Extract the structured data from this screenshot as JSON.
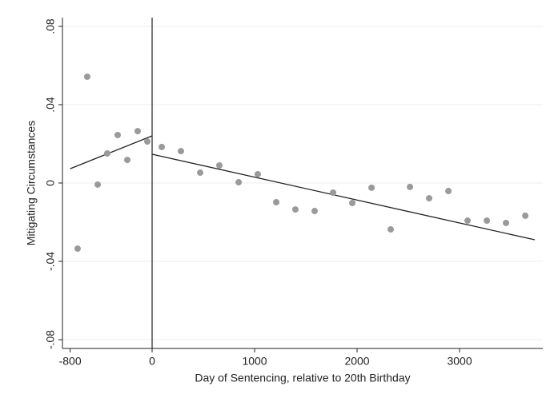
{
  "chart_data": {
    "type": "scatter",
    "xlabel": "Day of Sentencing, relative to 20th Birthday",
    "ylabel": "Mitigating Circumstances",
    "x": [
      -727,
      -633,
      -531,
      -438,
      -336,
      -242,
      -141,
      -47,
      94,
      281,
      469,
      656,
      844,
      1031,
      1211,
      1398,
      1586,
      1766,
      1953,
      2141,
      2328,
      2516,
      2703,
      2891,
      3078,
      3266,
      3453,
      3641
    ],
    "values": [
      -0.0335,
      0.0543,
      -0.0008,
      0.0151,
      0.0245,
      0.0118,
      0.0265,
      0.0212,
      0.0184,
      0.0163,
      0.0053,
      0.009,
      0.0004,
      0.0045,
      -0.0098,
      -0.0135,
      -0.0143,
      -0.0049,
      -0.0102,
      -0.0024,
      -0.0237,
      -0.002,
      -0.0078,
      -0.0041,
      -0.0192,
      -0.0192,
      -0.0204,
      -0.0167
    ],
    "color": "#9a9a9a",
    "fit_lines": [
      {
        "x": [
          -800,
          0
        ],
        "y": [
          0.0073,
          0.0241
        ],
        "color": "#222222"
      },
      {
        "x": [
          0,
          3734
        ],
        "y": [
          0.0147,
          -0.029
        ],
        "color": "#222222"
      }
    ],
    "vline": 0,
    "xlim": [
      -875,
      3812
    ],
    "ylim": [
      -0.0845,
      0.0845
    ],
    "xticks": [
      -800,
      0,
      1000,
      2000,
      3000
    ],
    "yticks": [
      {
        "value": -0.08,
        "label": "-.08"
      },
      {
        "value": -0.04,
        "label": "-.04"
      },
      0,
      {
        "value": 0.04,
        "label": ".04"
      },
      {
        "value": 0.08,
        "label": ".08"
      }
    ],
    "grid": true
  }
}
